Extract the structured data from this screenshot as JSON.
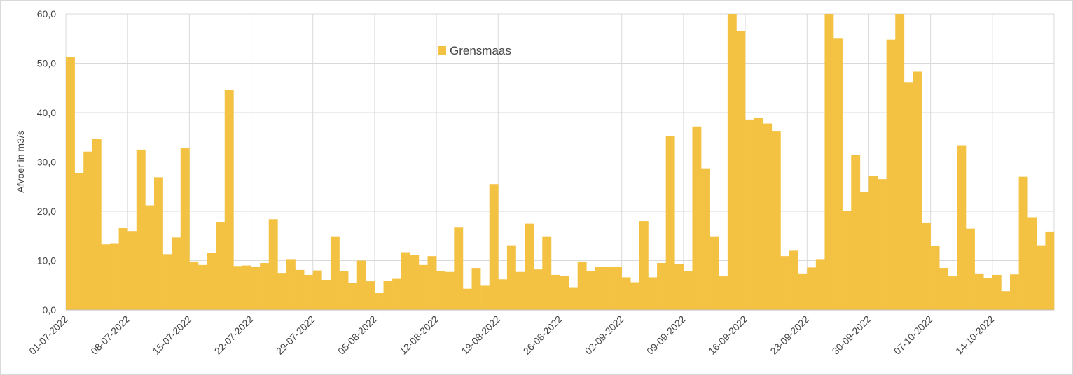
{
  "chart_data": {
    "type": "bar",
    "y_label": "Afvoer in m3/s",
    "categories": [
      "01-07-2022",
      null,
      null,
      null,
      null,
      null,
      null,
      "08-07-2022",
      null,
      null,
      null,
      null,
      null,
      null,
      "15-07-2022",
      null,
      null,
      null,
      null,
      null,
      null,
      "22-07-2022",
      null,
      null,
      null,
      null,
      null,
      null,
      "29-07-2022",
      null,
      null,
      null,
      null,
      null,
      null,
      "05-08-2022",
      null,
      null,
      null,
      null,
      null,
      null,
      "12-08-2022",
      null,
      null,
      null,
      null,
      null,
      null,
      "19-08-2022",
      null,
      null,
      null,
      null,
      null,
      null,
      "26-08-2022",
      null,
      null,
      null,
      null,
      null,
      null,
      "02-09-2022",
      null,
      null,
      null,
      null,
      null,
      null,
      "09-09-2022",
      null,
      null,
      null,
      null,
      null,
      null,
      "16-09-2022",
      null,
      null,
      null,
      null,
      null,
      null,
      "23-09-2022",
      null,
      null,
      null,
      null,
      null,
      null,
      "30-09-2022",
      null,
      null,
      null,
      null,
      null,
      null,
      "07-10-2022",
      null,
      null,
      null,
      null,
      null,
      null,
      "14-10-2022",
      null,
      null,
      null,
      null,
      null,
      null
    ],
    "series": [
      {
        "name": "Grensmaas",
        "color": "#f4c242",
        "values": [
          51.3,
          27.8,
          32.1,
          34.7,
          13.3,
          13.4,
          16.6,
          16.0,
          32.5,
          21.2,
          26.9,
          11.3,
          14.7,
          32.8,
          9.8,
          9.1,
          11.6,
          17.8,
          44.6,
          8.9,
          9.0,
          8.8,
          9.5,
          18.4,
          7.5,
          10.3,
          8.1,
          7.1,
          8.0,
          6.1,
          14.8,
          7.8,
          5.4,
          10.0,
          5.8,
          3.4,
          5.9,
          6.3,
          11.7,
          11.1,
          9.1,
          10.9,
          7.8,
          7.7,
          16.7,
          4.3,
          8.5,
          4.9,
          25.5,
          6.2,
          13.1,
          7.7,
          17.5,
          8.2,
          14.8,
          7.1,
          6.9,
          4.6,
          9.8,
          7.9,
          8.7,
          8.7,
          8.8,
          6.6,
          5.6,
          18.0,
          6.6,
          9.5,
          35.3,
          9.3,
          7.8,
          37.2,
          28.7,
          14.8,
          6.8,
          60,
          56.6,
          38.6,
          38.9,
          37.8,
          36.3,
          10.9,
          12.0,
          7.4,
          8.6,
          10.3,
          60,
          55.0,
          20.1,
          31.4,
          23.9,
          27.1,
          26.5,
          54.8,
          60,
          46.2,
          48.3,
          17.6,
          13.0,
          8.5,
          6.8,
          33.4,
          16.5,
          7.4,
          6.5,
          7.1,
          3.8,
          7.2,
          27.0,
          18.8,
          13.1,
          15.9
        ]
      }
    ],
    "ylim": [
      0,
      60
    ],
    "yticks": [
      {
        "value": 0,
        "label": "0,0"
      },
      {
        "value": 10,
        "label": "10,0"
      },
      {
        "value": 20,
        "label": "20,0"
      },
      {
        "value": 30,
        "label": "30,0"
      },
      {
        "value": 40,
        "label": "40,0"
      },
      {
        "value": 50,
        "label": "50,0"
      },
      {
        "value": 60,
        "label": "60,0"
      }
    ],
    "grid": true,
    "legend": "top"
  }
}
